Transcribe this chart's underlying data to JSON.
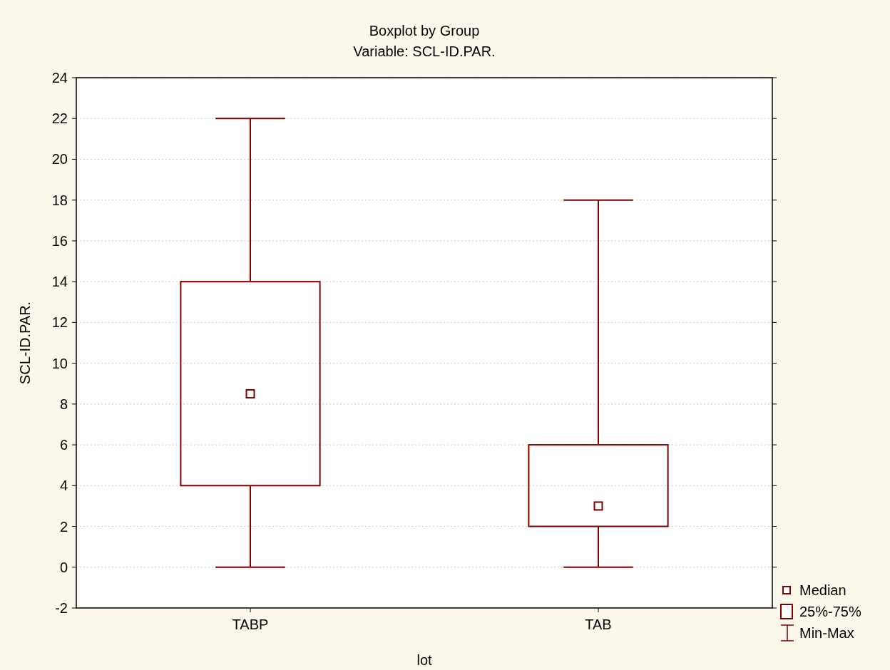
{
  "chart_data": {
    "type": "box",
    "title": "Boxplot by Group",
    "subtitle": "Variable: SCL-ID.PAR.",
    "xlabel": "lot",
    "ylabel": "SCL-ID.PAR.",
    "categories": [
      "TABP",
      "TAB"
    ],
    "series": [
      {
        "color": "#800000",
        "boxes": [
          {
            "low": 0,
            "q1": 4,
            "median": 8.5,
            "q3": 14,
            "high": 22
          },
          {
            "low": 0,
            "q1": 2,
            "median": 3,
            "q3": 6,
            "high": 18
          }
        ]
      }
    ],
    "ylim": [
      -2,
      24
    ],
    "yticks": [
      -2,
      0,
      2,
      4,
      6,
      8,
      10,
      12,
      14,
      16,
      18,
      20,
      22,
      24
    ],
    "grid": "y",
    "marker": "square",
    "annotations": [
      "Median",
      "25%-75%",
      "Min-Max"
    ]
  }
}
